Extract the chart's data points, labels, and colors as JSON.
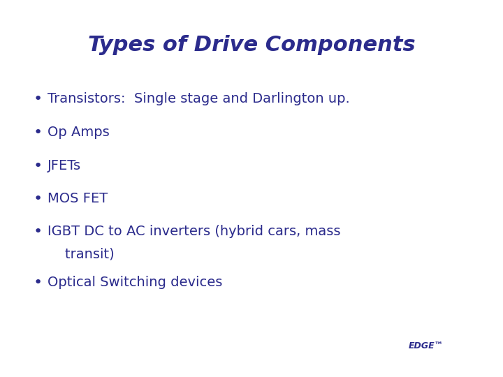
{
  "title": "Types of Drive Components",
  "title_color": "#2B2B8C",
  "title_fontsize": 22,
  "bullet_items": [
    "Transistors:  Single stage and Darlington up.",
    "Op Amps",
    "JFETs",
    "MOS FET",
    "IGBT DC to AC inverters (hybrid cars, mass",
    "    transit)",
    "Optical Switching devices"
  ],
  "bullet_flags": [
    true,
    true,
    true,
    true,
    true,
    false,
    true
  ],
  "bullet_color": "#2B2B8C",
  "bullet_fontsize": 14,
  "background_color": "#FFFFFF",
  "arc_color": "#999999",
  "edge_text": "EDGE™",
  "edge_fontsize": 9,
  "edge_color": "#2B2B8C"
}
